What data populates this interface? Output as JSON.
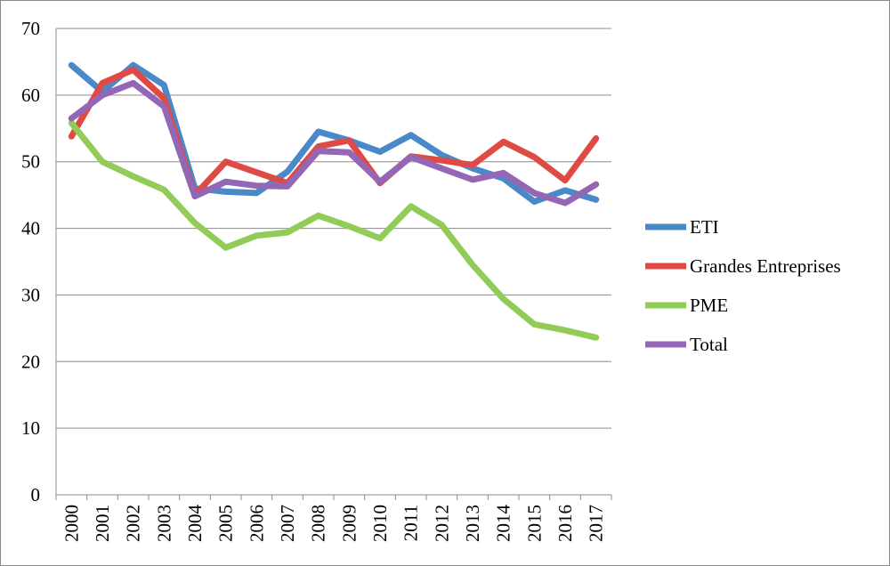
{
  "chart_data": {
    "type": "line",
    "title": "",
    "xlabel": "",
    "ylabel": "",
    "ylim": [
      0,
      70
    ],
    "yticks": [
      0,
      10,
      20,
      30,
      40,
      50,
      60,
      70
    ],
    "grid": true,
    "legend_position": "right",
    "categories": [
      "2000",
      "2001",
      "2002",
      "2003",
      "2004",
      "2005",
      "2006",
      "2007",
      "2008",
      "2009",
      "2010",
      "2011",
      "2012",
      "2013",
      "2014",
      "2015",
      "2016",
      "2017"
    ],
    "series": [
      {
        "name": "ETI",
        "color": "#4a89c8",
        "values": [
          64.5,
          60.5,
          64.5,
          61.5,
          46.0,
          45.5,
          45.3,
          48.5,
          54.5,
          53.2,
          51.5,
          54.0,
          51.0,
          49.0,
          47.5,
          44.0,
          45.7,
          44.3
        ]
      },
      {
        "name": "Grandes Entreprises",
        "color": "#e04a44",
        "values": [
          53.8,
          61.8,
          63.8,
          59.5,
          45.0,
          50.0,
          48.4,
          46.8,
          52.3,
          53.2,
          46.8,
          50.8,
          50.2,
          49.5,
          53.0,
          50.7,
          47.2,
          53.5
        ]
      },
      {
        "name": "PME",
        "color": "#92cc58",
        "values": [
          55.8,
          50.0,
          47.8,
          45.8,
          40.8,
          37.1,
          38.9,
          39.4,
          41.9,
          40.3,
          38.5,
          43.3,
          40.5,
          34.5,
          29.4,
          25.6,
          24.7,
          23.6
        ]
      },
      {
        "name": "Total",
        "color": "#9367b5",
        "values": [
          56.5,
          60.0,
          61.8,
          58.3,
          44.8,
          47.0,
          46.4,
          46.3,
          51.6,
          51.4,
          47.0,
          50.7,
          49.0,
          47.3,
          48.3,
          45.3,
          43.8,
          46.6
        ]
      }
    ]
  }
}
